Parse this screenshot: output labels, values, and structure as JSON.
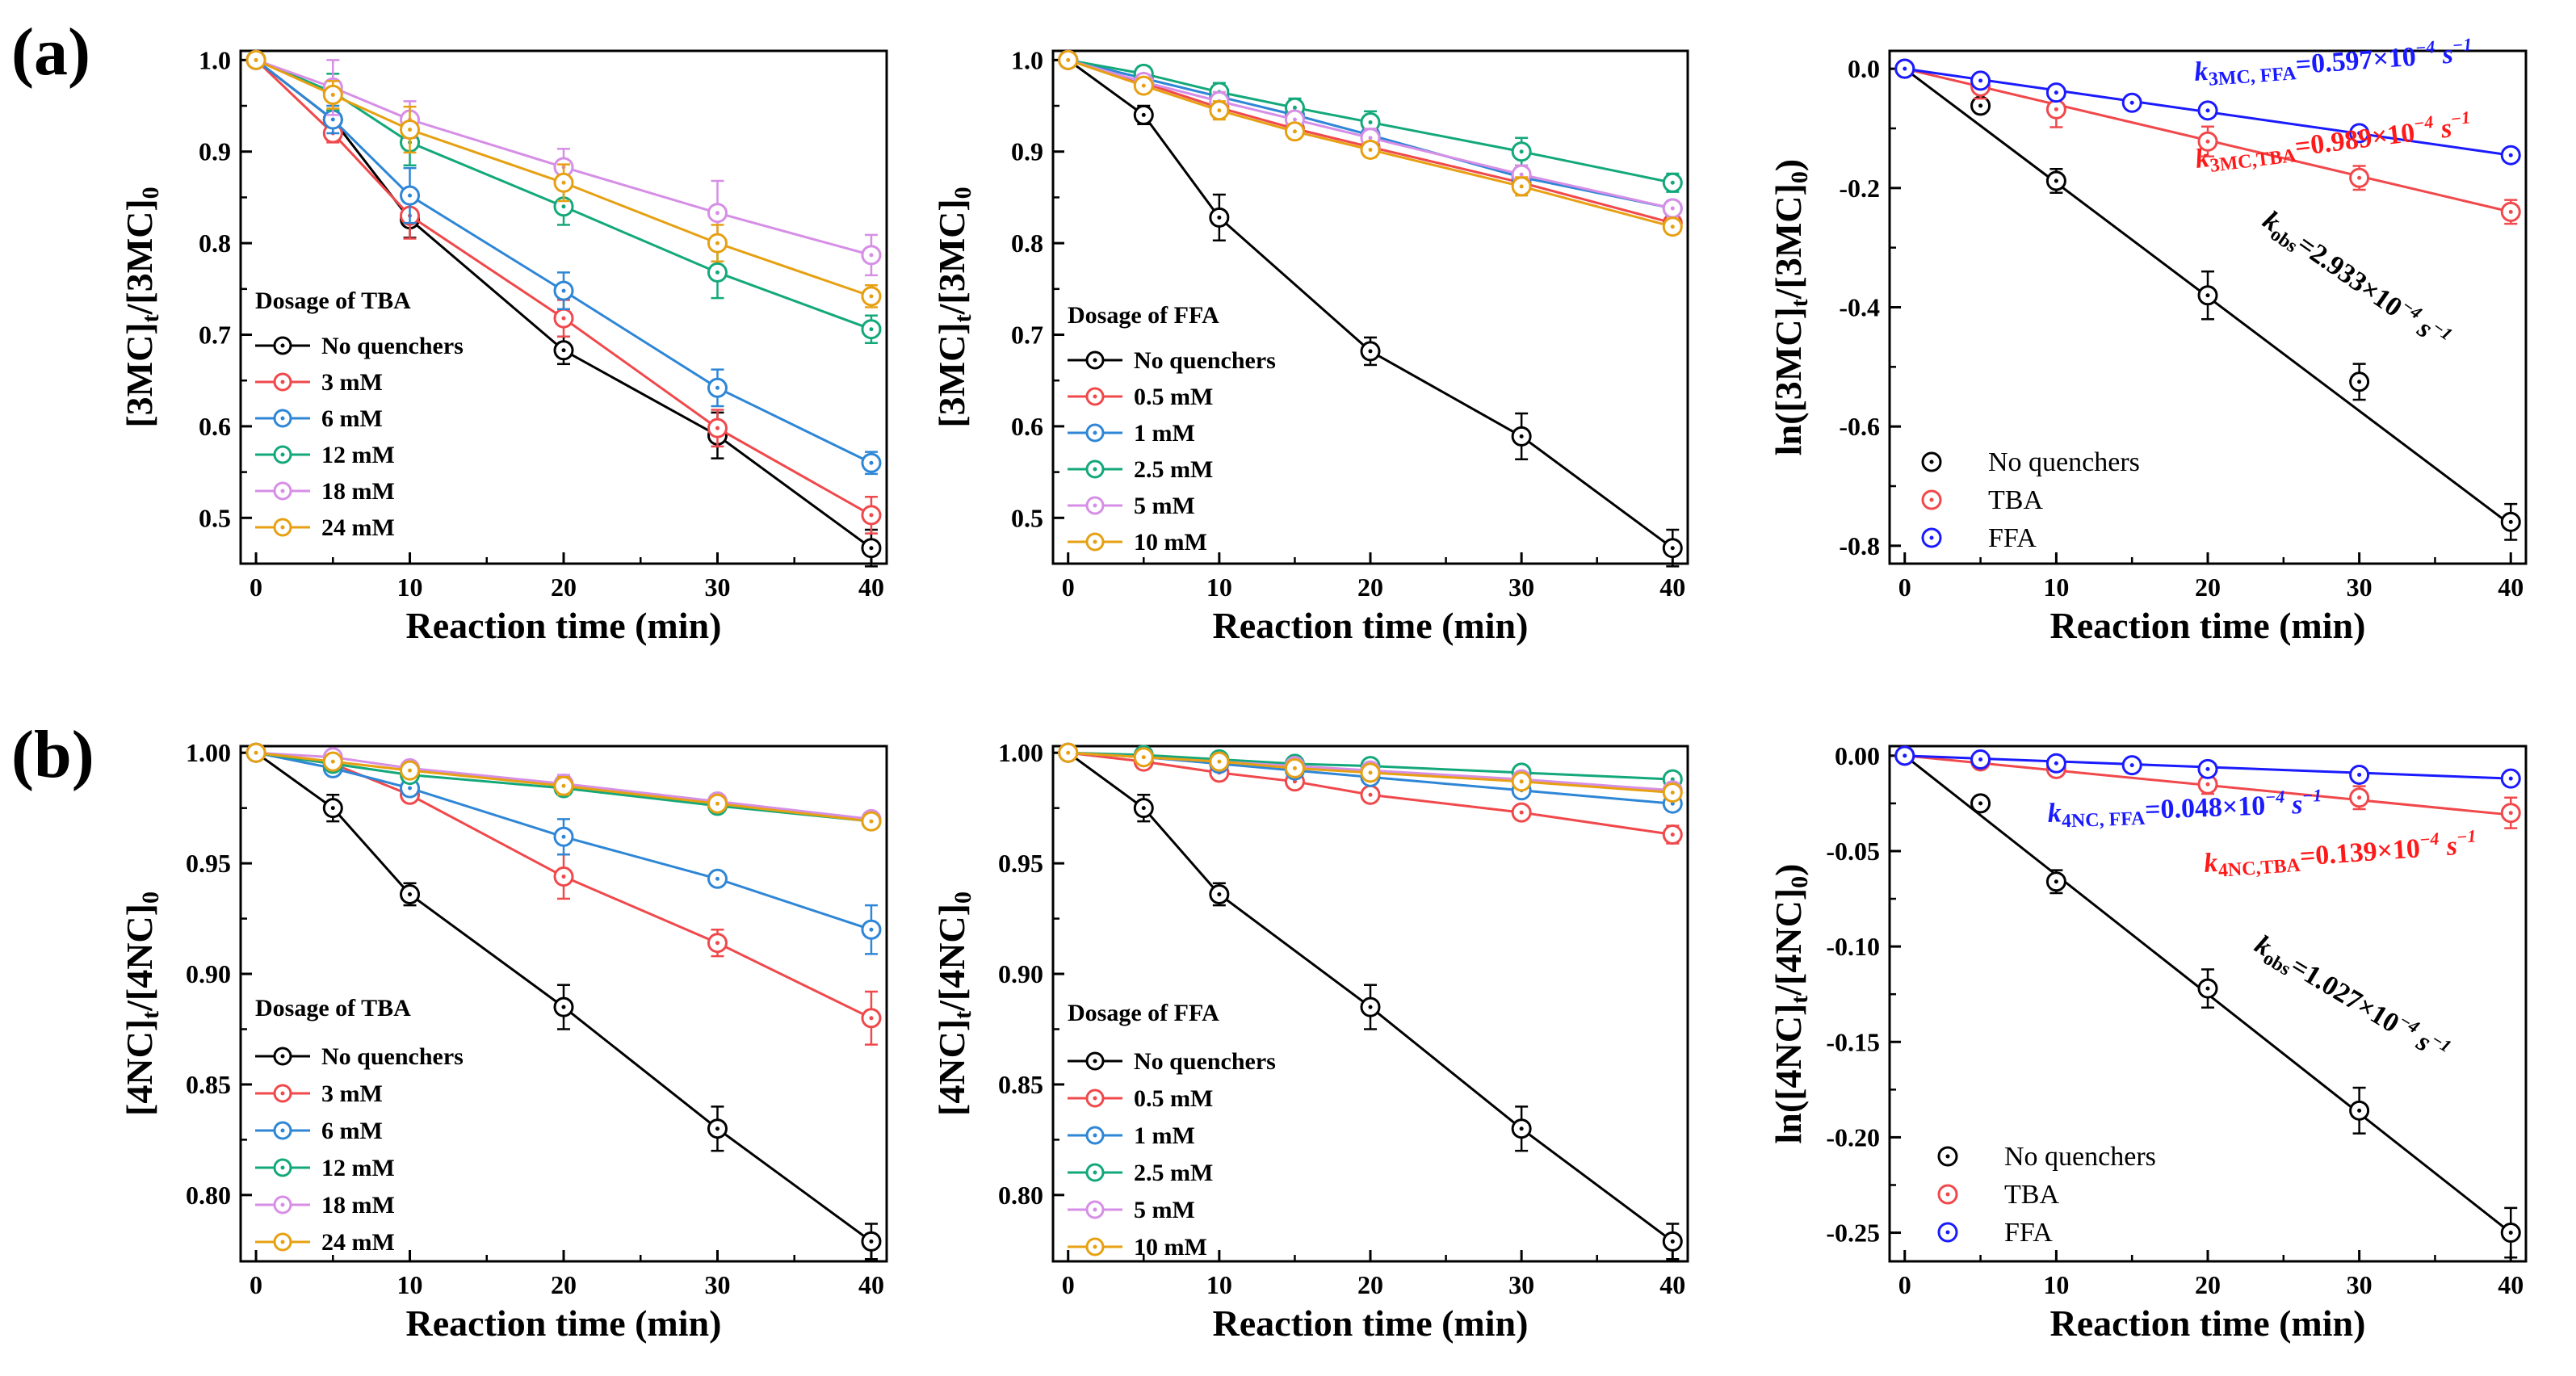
{
  "figure": {
    "panel_labels": [
      "(a)",
      "(b)"
    ],
    "colors": {
      "black": "#000000",
      "red": "#f0484b",
      "blue": "#2e86d6",
      "green": "#13a87a",
      "purple": "#d68ee6",
      "orange": "#e6a012",
      "pure_blue": "#1a1aff",
      "pure_red": "#ff1a1a"
    }
  },
  "chart_data": [
    {
      "id": "a1",
      "type": "line",
      "xlabel": "Reaction time (min)",
      "ylabel": "[3MC]t/[3MC]0",
      "ylabel_parts": [
        "[3MC]",
        "t",
        "/[3MC]",
        "0"
      ],
      "xlim": [
        -1,
        41
      ],
      "ylim": [
        0.45,
        1.01
      ],
      "xticks": [
        0,
        10,
        20,
        30,
        40
      ],
      "xtick_labels": [
        "0",
        "10",
        "20",
        "30",
        "40"
      ],
      "yticks": [
        0.5,
        0.6,
        0.7,
        0.8,
        0.9,
        1.0
      ],
      "ytick_labels": [
        "0.5",
        "0.6",
        "0.7",
        "0.8",
        "0.9",
        "1.0"
      ],
      "legend_title": "Dosage of TBA",
      "legend_position": "lower-left",
      "x": [
        0,
        5,
        10,
        20,
        30,
        40
      ],
      "series": [
        {
          "name": "No quenchers",
          "color": "#000000",
          "values": [
            1.0,
            0.935,
            0.826,
            0.683,
            0.59,
            0.467
          ],
          "err": [
            0,
            0.01,
            0.02,
            0.015,
            0.025,
            0.02
          ]
        },
        {
          "name": "3 mM",
          "color": "#f0484b",
          "values": [
            1.0,
            0.92,
            0.83,
            0.718,
            0.598,
            0.503
          ],
          "err": [
            0,
            0.01,
            0.025,
            0.02,
            0.02,
            0.02
          ]
        },
        {
          "name": "6 mM",
          "color": "#2e86d6",
          "values": [
            1.0,
            0.935,
            0.852,
            0.748,
            0.642,
            0.56
          ],
          "err": [
            0,
            0.015,
            0.03,
            0.02,
            0.02,
            0.012
          ]
        },
        {
          "name": "12 mM",
          "color": "#13a87a",
          "values": [
            1.0,
            0.965,
            0.91,
            0.84,
            0.768,
            0.706
          ],
          "err": [
            0,
            0.02,
            0.025,
            0.02,
            0.028,
            0.015
          ]
        },
        {
          "name": "18 mM",
          "color": "#d68ee6",
          "values": [
            1.0,
            0.97,
            0.935,
            0.883,
            0.833,
            0.787
          ],
          "err": [
            0,
            0.03,
            0.02,
            0.02,
            0.035,
            0.022
          ]
        },
        {
          "name": "24 mM",
          "color": "#e6a012",
          "values": [
            1.0,
            0.962,
            0.924,
            0.866,
            0.8,
            0.742
          ],
          "err": [
            0,
            0.015,
            0.025,
            0.02,
            0.02,
            0.012
          ]
        }
      ]
    },
    {
      "id": "a2",
      "type": "line",
      "xlabel": "Reaction time (min)",
      "ylabel": "[3MC]t/[3MC]0",
      "ylabel_parts": [
        "[3MC]",
        "t",
        "/[3MC]",
        "0"
      ],
      "xlim": [
        -1,
        41
      ],
      "ylim": [
        0.45,
        1.01
      ],
      "xticks": [
        0,
        10,
        20,
        30,
        40
      ],
      "xtick_labels": [
        "0",
        "10",
        "20",
        "30",
        "40"
      ],
      "yticks": [
        0.5,
        0.6,
        0.7,
        0.8,
        0.9,
        1.0
      ],
      "ytick_labels": [
        "0.5",
        "0.6",
        "0.7",
        "0.8",
        "0.9",
        "1.0"
      ],
      "legend_title": "Dosage of FFA",
      "legend_position": "lower-left",
      "x": [
        0,
        5,
        10,
        15,
        20,
        30,
        40
      ],
      "series": [
        {
          "name": "No quenchers",
          "color": "#000000",
          "values": [
            1.0,
            0.94,
            0.828,
            null,
            0.682,
            0.589,
            0.467
          ],
          "err": [
            0,
            0.01,
            0.025,
            0,
            0.015,
            0.025,
            0.02
          ]
        },
        {
          "name": "0.5 mM",
          "color": "#f0484b",
          "values": [
            1.0,
            0.975,
            0.948,
            0.925,
            0.905,
            0.866,
            0.822
          ],
          "err": [
            0,
            0.008,
            0.01,
            0.008,
            0.008,
            0.01,
            0.008
          ]
        },
        {
          "name": "1 mM",
          "color": "#2e86d6",
          "values": [
            1.0,
            0.98,
            0.96,
            0.94,
            0.918,
            0.872,
            0.838
          ],
          "err": [
            0,
            0.008,
            0.01,
            0.008,
            0.01,
            0.01,
            0.008
          ]
        },
        {
          "name": "2.5 mM",
          "color": "#13a87a",
          "values": [
            1.0,
            0.985,
            0.965,
            0.948,
            0.932,
            0.9,
            0.866
          ],
          "err": [
            0,
            0.008,
            0.01,
            0.01,
            0.012,
            0.015,
            0.01
          ]
        },
        {
          "name": "5 mM",
          "color": "#d68ee6",
          "values": [
            1.0,
            0.976,
            0.955,
            0.935,
            0.915,
            0.875,
            0.838
          ],
          "err": [
            0,
            0.008,
            0.01,
            0.008,
            0.01,
            0.01,
            0.008
          ]
        },
        {
          "name": "10 mM",
          "color": "#e6a012",
          "values": [
            1.0,
            0.972,
            0.945,
            0.922,
            0.902,
            0.862,
            0.818
          ],
          "err": [
            0,
            0.008,
            0.01,
            0.008,
            0.008,
            0.01,
            0.008
          ]
        }
      ]
    },
    {
      "id": "a3",
      "type": "scatter",
      "xlabel": "Reaction time (min)",
      "ylabel": "ln([3MC]t/[3MC]0)",
      "ylabel_parts": [
        "ln([3MC]",
        "t",
        "/[3MC]",
        "0",
        ")"
      ],
      "xlim": [
        -1,
        41
      ],
      "ylim": [
        -0.83,
        0.03
      ],
      "xticks": [
        0,
        10,
        20,
        30,
        40
      ],
      "xtick_labels": [
        "0",
        "10",
        "20",
        "30",
        "40"
      ],
      "yticks": [
        0.0,
        -0.2,
        -0.4,
        -0.6,
        -0.8
      ],
      "ytick_labels": [
        "0.0",
        "-0.2",
        "-0.4",
        "-0.6",
        "-0.8"
      ],
      "legend_position": "lower-left",
      "series": [
        {
          "name": "No quenchers",
          "color": "#000000",
          "x": [
            0,
            5,
            10,
            20,
            30,
            40
          ],
          "values": [
            0,
            -0.062,
            -0.188,
            -0.38,
            -0.525,
            -0.76
          ],
          "err": [
            0,
            0.01,
            0.02,
            0.04,
            0.03,
            0.03
          ],
          "fit": {
            "x0": 0,
            "y0": 0,
            "x1": 40,
            "y1": -0.765
          }
        },
        {
          "name": "TBA",
          "color": "#f0484b",
          "x": [
            0,
            5,
            10,
            20,
            30,
            40
          ],
          "values": [
            0,
            -0.03,
            -0.068,
            -0.122,
            -0.183,
            -0.24
          ],
          "err": [
            0,
            0.02,
            0.03,
            0.025,
            0.02,
            0.02
          ],
          "fit": {
            "x0": 0,
            "y0": 0,
            "x1": 40,
            "y1": -0.24
          }
        },
        {
          "name": "FFA",
          "color": "#1a1aff",
          "x": [
            0,
            5,
            10,
            15,
            20,
            30,
            40
          ],
          "values": [
            0,
            -0.02,
            -0.04,
            -0.057,
            -0.07,
            -0.108,
            -0.145
          ],
          "err": [
            0,
            0,
            0,
            0,
            0,
            0,
            0
          ],
          "fit": {
            "x0": 0,
            "y0": 0,
            "x1": 40,
            "y1": -0.145
          }
        }
      ],
      "annotations": [
        {
          "id": "ffa",
          "base": "k",
          "sub": "3MC, FFA",
          "text": "=0.597×10",
          "sup": "−4",
          "unit": " s",
          "unit_sup": "−1",
          "color": "#1a1aff"
        },
        {
          "id": "tba",
          "base": "k",
          "sub": "3MC,TBA",
          "text": "=0.989×10",
          "sup": "−4",
          "unit": " s",
          "unit_sup": "−1",
          "color": "#ff1a1a"
        },
        {
          "id": "obs",
          "base": "k",
          "sub": "obs",
          "text": "=2.933×10",
          "sup": "−4",
          "unit": " s",
          "unit_sup": "−1",
          "color": "#000000"
        }
      ]
    },
    {
      "id": "b1",
      "type": "line",
      "xlabel": "Reaction time (min)",
      "ylabel": "[4NC]t/[4NC]0",
      "ylabel_parts": [
        "[4NC]",
        "t",
        "/[4NC]",
        "0"
      ],
      "xlim": [
        -1,
        41
      ],
      "ylim": [
        0.77,
        1.003
      ],
      "xticks": [
        0,
        10,
        20,
        30,
        40
      ],
      "xtick_labels": [
        "0",
        "10",
        "20",
        "30",
        "40"
      ],
      "yticks": [
        0.8,
        0.85,
        0.9,
        0.95,
        1.0
      ],
      "ytick_labels": [
        "0.80",
        "0.85",
        "0.90",
        "0.95",
        "1.00"
      ],
      "legend_title": "Dosage of TBA",
      "legend_position": "lower-left",
      "x": [
        0,
        5,
        10,
        20,
        30,
        40
      ],
      "series": [
        {
          "name": "No quenchers",
          "color": "#000000",
          "values": [
            1.0,
            0.975,
            0.936,
            0.885,
            0.83,
            0.779
          ],
          "err": [
            0,
            0.006,
            0.005,
            0.01,
            0.01,
            0.008
          ]
        },
        {
          "name": "3 mM",
          "color": "#f0484b",
          "values": [
            1.0,
            0.995,
            0.981,
            0.944,
            0.914,
            0.88
          ],
          "err": [
            0,
            0.003,
            0.003,
            0.01,
            0.006,
            0.012
          ]
        },
        {
          "name": "6 mM",
          "color": "#2e86d6",
          "values": [
            1.0,
            0.993,
            0.984,
            0.962,
            0.943,
            0.92
          ],
          "err": [
            0,
            0.003,
            0.003,
            0.008,
            0.003,
            0.011
          ]
        },
        {
          "name": "12 mM",
          "color": "#13a87a",
          "values": [
            1.0,
            0.995,
            0.99,
            0.984,
            0.976,
            0.969
          ],
          "err": [
            0,
            0.002,
            0.003,
            0.003,
            0.003,
            0.003
          ]
        },
        {
          "name": "18 mM",
          "color": "#d68ee6",
          "values": [
            1.0,
            0.998,
            0.993,
            0.986,
            0.978,
            0.97
          ],
          "err": [
            0,
            0.002,
            0.003,
            0.004,
            0.003,
            0.003
          ]
        },
        {
          "name": "24 mM",
          "color": "#e6a012",
          "values": [
            1.0,
            0.996,
            0.992,
            0.985,
            0.977,
            0.969
          ],
          "err": [
            0,
            0.002,
            0.003,
            0.004,
            0.003,
            0.003
          ]
        }
      ]
    },
    {
      "id": "b2",
      "type": "line",
      "xlabel": "Reaction time (min)",
      "ylabel": "[4NC]t/[4NC]0",
      "ylabel_parts": [
        "[4NC]",
        "t",
        "/[4NC]",
        "0"
      ],
      "xlim": [
        -1,
        41
      ],
      "ylim": [
        0.77,
        1.003
      ],
      "xticks": [
        0,
        10,
        20,
        30,
        40
      ],
      "xtick_labels": [
        "0",
        "10",
        "20",
        "30",
        "40"
      ],
      "yticks": [
        0.8,
        0.85,
        0.9,
        0.95,
        1.0
      ],
      "ytick_labels": [
        "0.80",
        "0.85",
        "0.90",
        "0.95",
        "1.00"
      ],
      "legend_title": "Dosage of FFA",
      "legend_position": "lower-left",
      "x": [
        0,
        5,
        10,
        15,
        20,
        30,
        40
      ],
      "series": [
        {
          "name": "No quenchers",
          "color": "#000000",
          "values": [
            1.0,
            0.975,
            0.936,
            null,
            0.885,
            0.83,
            0.779
          ],
          "err": [
            0,
            0.006,
            0.005,
            0,
            0.01,
            0.01,
            0.008
          ]
        },
        {
          "name": "0.5 mM",
          "color": "#f0484b",
          "values": [
            1.0,
            0.996,
            0.991,
            0.987,
            0.981,
            0.973,
            0.963
          ],
          "err": [
            0,
            0.002,
            0.002,
            0.002,
            0.002,
            0.003,
            0.004
          ]
        },
        {
          "name": "1 mM",
          "color": "#2e86d6",
          "values": [
            1.0,
            0.998,
            0.995,
            0.992,
            0.989,
            0.983,
            0.977
          ],
          "err": [
            0,
            0.002,
            0.002,
            0.002,
            0.002,
            0.002,
            0.003
          ]
        },
        {
          "name": "2.5 mM",
          "color": "#13a87a",
          "values": [
            1.0,
            0.999,
            0.997,
            0.995,
            0.994,
            0.991,
            0.988
          ],
          "err": [
            0,
            0.002,
            0.002,
            0.002,
            0.002,
            0.002,
            0.002
          ]
        },
        {
          "name": "5 mM",
          "color": "#d68ee6",
          "values": [
            1.0,
            0.998,
            0.996,
            0.994,
            0.992,
            0.988,
            0.983
          ],
          "err": [
            0,
            0.002,
            0.002,
            0.002,
            0.002,
            0.002,
            0.002
          ]
        },
        {
          "name": "10 mM",
          "color": "#e6a012",
          "values": [
            1.0,
            0.998,
            0.996,
            0.993,
            0.991,
            0.987,
            0.982
          ],
          "err": [
            0,
            0.002,
            0.002,
            0.002,
            0.002,
            0.002,
            0.002
          ]
        }
      ]
    },
    {
      "id": "b3",
      "type": "scatter",
      "xlabel": "Reaction time (min)",
      "ylabel": "ln([4NC]t/[4NC]0)",
      "ylabel_parts": [
        "ln([4NC]",
        "t",
        "/[4NC]",
        "0",
        ")"
      ],
      "xlim": [
        -1,
        41
      ],
      "ylim": [
        -0.265,
        0.005
      ],
      "xticks": [
        0,
        10,
        20,
        30,
        40
      ],
      "xtick_labels": [
        "0",
        "10",
        "20",
        "30",
        "40"
      ],
      "yticks": [
        0.0,
        -0.05,
        -0.1,
        -0.15,
        -0.2,
        -0.25
      ],
      "ytick_labels": [
        "0.00",
        "-0.05",
        "-0.10",
        "-0.15",
        "-0.20",
        "-0.25"
      ],
      "legend_position": "lower-left",
      "series": [
        {
          "name": "No quenchers",
          "color": "#000000",
          "x": [
            0,
            5,
            10,
            20,
            30,
            40
          ],
          "values": [
            0,
            -0.025,
            -0.066,
            -0.122,
            -0.186,
            -0.25
          ],
          "err": [
            0,
            0.003,
            0.006,
            0.01,
            0.012,
            0.013
          ],
          "fit": {
            "x0": 0,
            "y0": 0,
            "x1": 40,
            "y1": -0.25
          }
        },
        {
          "name": "TBA",
          "color": "#f0484b",
          "x": [
            0,
            5,
            10,
            20,
            30,
            40
          ],
          "values": [
            0,
            -0.003,
            -0.007,
            -0.015,
            -0.022,
            -0.03
          ],
          "err": [
            0,
            0.002,
            0.003,
            0.005,
            0.006,
            0.008
          ],
          "fit": {
            "x0": 0,
            "y0": 0,
            "x1": 40,
            "y1": -0.031
          }
        },
        {
          "name": "FFA",
          "color": "#1a1aff",
          "x": [
            0,
            5,
            10,
            15,
            20,
            30,
            40
          ],
          "values": [
            0,
            -0.002,
            -0.004,
            -0.005,
            -0.007,
            -0.01,
            -0.012
          ],
          "err": [
            0,
            0,
            0,
            0,
            0,
            0,
            0
          ],
          "fit": {
            "x0": 0,
            "y0": 0,
            "x1": 40,
            "y1": -0.012
          }
        }
      ],
      "annotations": [
        {
          "id": "ffa",
          "base": "k",
          "sub": "4NC, FFA",
          "text": "=0.048×10",
          "sup": "−4",
          "unit": " s",
          "unit_sup": "−1",
          "color": "#1a1aff"
        },
        {
          "id": "tba",
          "base": "k",
          "sub": "4NC,TBA",
          "text": "=0.139×10",
          "sup": "−4",
          "unit": " s",
          "unit_sup": "−1",
          "color": "#ff1a1a"
        },
        {
          "id": "obs",
          "base": "k",
          "sub": "obs",
          "text": "=1.027×10",
          "sup": "−4",
          "unit": " s",
          "unit_sup": "−1",
          "color": "#000000"
        }
      ]
    }
  ]
}
